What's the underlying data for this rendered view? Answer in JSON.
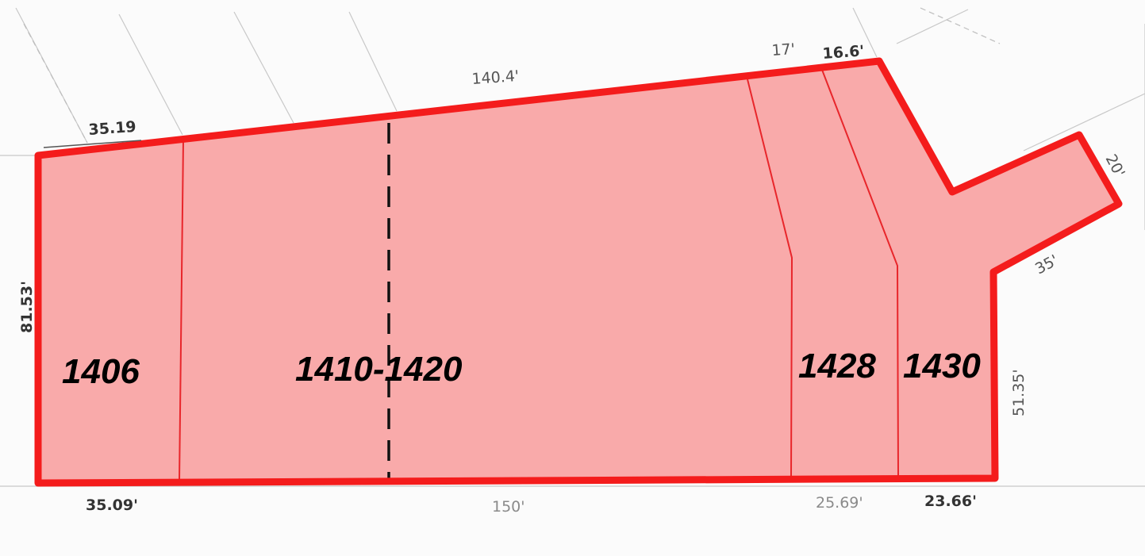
{
  "lots": [
    {
      "id": "lot-1406",
      "label": "1406"
    },
    {
      "id": "lot-1410-1420",
      "label": "1410-1420"
    },
    {
      "id": "lot-1428",
      "label": "1428"
    },
    {
      "id": "lot-1430",
      "label": "1430"
    }
  ],
  "dimensions": {
    "top_left": "35.19",
    "top_main": "140.4'",
    "top_17": "17'",
    "top_16_6": "16.6'",
    "left_side": "81.53'",
    "bottom_left": "35.09'",
    "bottom_main": "150'",
    "bottom_25_69": "25.69'",
    "bottom_23_66": "23.66'",
    "right_side": "51.35'",
    "flag_end": "20'",
    "flag_side": "35'"
  },
  "colors": {
    "parcel_fill": "#f9aaaa",
    "parcel_outline": "#f41c1c",
    "lot_line": "#e8262b",
    "split_line": "#111111"
  }
}
